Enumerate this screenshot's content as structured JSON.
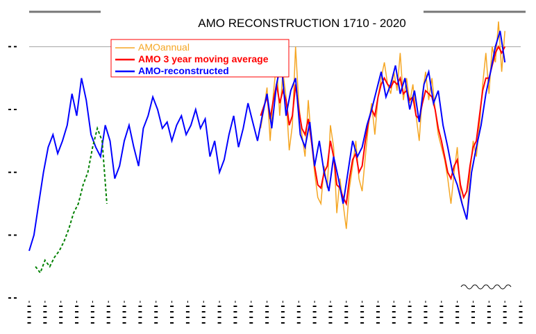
{
  "chart_data": {
    "type": "line",
    "title": "AMO RECONSTRUCTION 1710 - 2020",
    "xlim": [
      1710,
      2020
    ],
    "ylim": [
      -0.6,
      0.3
    ],
    "grid": false,
    "reference_line_y": 0.2,
    "legend_position": "top-left",
    "colors": {
      "AMOannual": "#f5a623",
      "AMO 3 year moving average": "#ff0000",
      "AMO-reconstructed": "#0000ff",
      "secondary": "#008000",
      "reference": "#a0a0a0"
    },
    "series": [
      {
        "name": "AMOannual",
        "x": [
          1856,
          1858,
          1860,
          1862,
          1864,
          1866,
          1868,
          1870,
          1872,
          1874,
          1876,
          1878,
          1880,
          1882,
          1884,
          1886,
          1888,
          1890,
          1892,
          1894,
          1896,
          1898,
          1900,
          1902,
          1904,
          1906,
          1908,
          1910,
          1912,
          1914,
          1916,
          1918,
          1920,
          1922,
          1924,
          1926,
          1928,
          1930,
          1932,
          1934,
          1936,
          1938,
          1940,
          1942,
          1944,
          1946,
          1948,
          1950,
          1952,
          1954,
          1956,
          1958,
          1960,
          1962,
          1964,
          1966,
          1968,
          1970,
          1972,
          1974,
          1976,
          1978,
          1980,
          1982,
          1984,
          1986,
          1988,
          1990,
          1992,
          1994,
          1996,
          1998,
          2000,
          2002,
          2004,
          2006,
          2008,
          2010
        ],
        "values": [
          -0.06,
          0.0,
          0.07,
          -0.1,
          0.05,
          0.15,
          -0.02,
          0.12,
          0.04,
          -0.13,
          -0.05,
          0.2,
          0.02,
          -0.08,
          -0.15,
          0.03,
          -0.1,
          -0.2,
          -0.28,
          -0.3,
          -0.18,
          -0.25,
          -0.05,
          -0.12,
          -0.33,
          -0.22,
          -0.3,
          -0.38,
          -0.25,
          -0.18,
          -0.1,
          -0.22,
          -0.26,
          -0.15,
          -0.05,
          0.02,
          -0.08,
          0.04,
          0.1,
          0.15,
          0.08,
          0.05,
          0.12,
          0.06,
          0.18,
          0.03,
          0.1,
          0.02,
          0.08,
          -0.02,
          -0.1,
          0.05,
          0.12,
          0.03,
          0.1,
          0.0,
          -0.08,
          -0.12,
          -0.16,
          -0.22,
          -0.3,
          -0.2,
          -0.12,
          -0.27,
          -0.32,
          -0.35,
          -0.2,
          -0.1,
          -0.15,
          -0.05,
          0.08,
          0.18,
          0.05,
          0.2,
          0.15,
          0.28,
          0.12,
          0.25
        ]
      },
      {
        "name": "AMO 3 year moving average",
        "x": [
          1856,
          1858,
          1860,
          1862,
          1864,
          1866,
          1868,
          1870,
          1872,
          1874,
          1876,
          1878,
          1880,
          1882,
          1884,
          1886,
          1888,
          1890,
          1892,
          1894,
          1896,
          1898,
          1900,
          1902,
          1904,
          1906,
          1908,
          1910,
          1912,
          1914,
          1916,
          1918,
          1920,
          1922,
          1924,
          1926,
          1928,
          1930,
          1932,
          1934,
          1936,
          1938,
          1940,
          1942,
          1944,
          1946,
          1948,
          1950,
          1952,
          1954,
          1956,
          1958,
          1960,
          1962,
          1964,
          1966,
          1968,
          1970,
          1972,
          1974,
          1976,
          1978,
          1980,
          1982,
          1984,
          1986,
          1988,
          1990,
          1992,
          1994,
          1996,
          1998,
          2000,
          2002,
          2004,
          2006,
          2008,
          2010
        ],
        "values": [
          -0.02,
          0.01,
          0.04,
          -0.03,
          0.03,
          0.08,
          0.02,
          0.06,
          0.03,
          -0.05,
          -0.02,
          0.08,
          0.0,
          -0.06,
          -0.08,
          -0.03,
          -0.1,
          -0.18,
          -0.24,
          -0.25,
          -0.2,
          -0.18,
          -0.1,
          -0.15,
          -0.24,
          -0.25,
          -0.28,
          -0.3,
          -0.22,
          -0.16,
          -0.14,
          -0.2,
          -0.18,
          -0.1,
          -0.04,
          0.0,
          -0.02,
          0.04,
          0.08,
          0.1,
          0.08,
          0.07,
          0.09,
          0.08,
          0.1,
          0.05,
          0.06,
          0.03,
          0.04,
          -0.02,
          -0.03,
          0.02,
          0.06,
          0.05,
          0.04,
          0.0,
          -0.06,
          -0.1,
          -0.15,
          -0.2,
          -0.22,
          -0.18,
          -0.16,
          -0.24,
          -0.28,
          -0.26,
          -0.18,
          -0.12,
          -0.1,
          -0.02,
          0.06,
          0.1,
          0.1,
          0.14,
          0.18,
          0.2,
          0.18,
          0.2
        ]
      },
      {
        "name": "AMO-reconstructed",
        "x": [
          1710,
          1713,
          1716,
          1719,
          1722,
          1725,
          1728,
          1731,
          1734,
          1737,
          1740,
          1743,
          1746,
          1749,
          1752,
          1755,
          1758,
          1761,
          1764,
          1767,
          1770,
          1773,
          1776,
          1779,
          1782,
          1785,
          1788,
          1791,
          1794,
          1797,
          1800,
          1803,
          1806,
          1809,
          1812,
          1815,
          1818,
          1821,
          1824,
          1827,
          1830,
          1833,
          1836,
          1839,
          1842,
          1845,
          1848,
          1851,
          1854,
          1857,
          1860,
          1863,
          1866,
          1869,
          1872,
          1875,
          1878,
          1881,
          1884,
          1887,
          1890,
          1893,
          1896,
          1899,
          1902,
          1905,
          1908,
          1911,
          1914,
          1917,
          1920,
          1923,
          1926,
          1929,
          1932,
          1935,
          1938,
          1941,
          1944,
          1947,
          1950,
          1953,
          1956,
          1959,
          1962,
          1965,
          1968,
          1971,
          1974,
          1977,
          1980,
          1983,
          1986,
          1989,
          1992,
          1995,
          1998,
          2001,
          2004,
          2007,
          2010
        ],
        "values": [
          -0.45,
          -0.4,
          -0.3,
          -0.2,
          -0.12,
          -0.08,
          -0.14,
          -0.1,
          -0.05,
          0.05,
          -0.02,
          0.1,
          0.03,
          -0.08,
          -0.12,
          -0.15,
          -0.05,
          -0.1,
          -0.22,
          -0.18,
          -0.1,
          -0.05,
          -0.12,
          -0.18,
          -0.06,
          -0.02,
          0.04,
          0.0,
          -0.06,
          -0.04,
          -0.1,
          -0.05,
          -0.02,
          -0.08,
          -0.05,
          0.0,
          -0.06,
          -0.03,
          -0.15,
          -0.1,
          -0.2,
          -0.16,
          -0.08,
          -0.02,
          -0.12,
          -0.06,
          0.02,
          -0.04,
          -0.1,
          -0.02,
          0.05,
          -0.06,
          0.08,
          0.15,
          -0.02,
          0.06,
          0.1,
          -0.08,
          -0.12,
          -0.04,
          -0.18,
          -0.1,
          -0.2,
          -0.26,
          -0.15,
          -0.22,
          -0.3,
          -0.2,
          -0.1,
          -0.15,
          -0.12,
          -0.05,
          0.0,
          0.06,
          0.12,
          0.04,
          0.08,
          0.14,
          0.05,
          0.1,
          0.0,
          0.06,
          -0.04,
          0.08,
          0.12,
          0.02,
          0.06,
          -0.05,
          -0.12,
          -0.2,
          -0.24,
          -0.3,
          -0.35,
          -0.2,
          -0.12,
          -0.05,
          0.05,
          0.12,
          0.2,
          0.25,
          0.15
        ]
      },
      {
        "name": "",
        "x": [
          1714,
          1717,
          1720,
          1723,
          1726,
          1729,
          1732,
          1735,
          1738,
          1741,
          1744,
          1747,
          1750,
          1753,
          1756,
          1759
        ],
        "values": [
          -0.5,
          -0.52,
          -0.48,
          -0.5,
          -0.47,
          -0.45,
          -0.42,
          -0.38,
          -0.33,
          -0.3,
          -0.24,
          -0.2,
          -0.12,
          -0.06,
          -0.1,
          -0.3
        ]
      }
    ]
  }
}
